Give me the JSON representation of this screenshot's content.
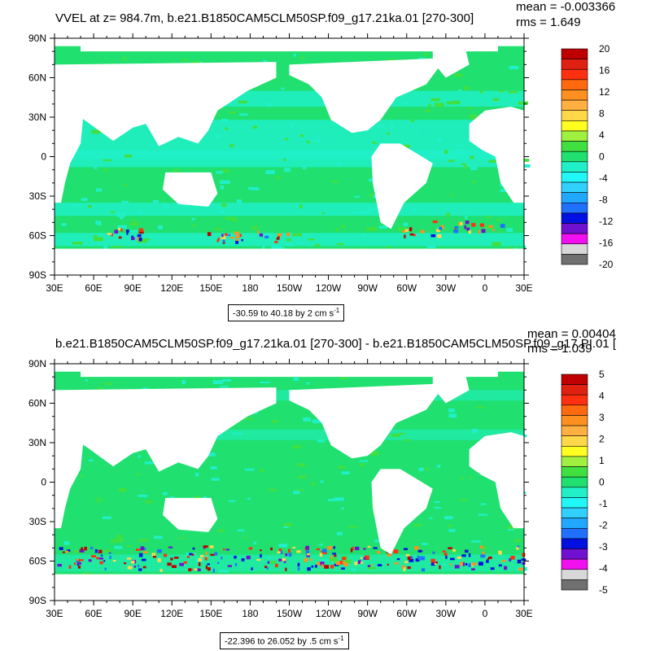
{
  "panels": [
    {
      "title": "VVEL at z= 984.7m, b.e21.B1850CAM5CLM50SP.f09_g17.21ka.01 [270-300]",
      "mean": "mean = -0.003366",
      "rms": "rms = 1.649",
      "caption": "-30.59 to 40.18 by 2 cm s",
      "caption_sup": "-1",
      "colorbar_labels": [
        "20",
        "16",
        "12",
        "8",
        "4",
        "0",
        "-4",
        "-8",
        "-12",
        "-16",
        "-20"
      ]
    },
    {
      "title": "b.e21.B1850CAM5CLM50SP.f09_g17.21ka.01 [270-300] - b.e21.B1850CAM5CLM50SP.f09_g17.PI.01 [",
      "mean": "mean = 0.00404",
      "rms": "rms = 1.039",
      "caption": "-22.396 to 26.052 by .5 cm s",
      "caption_sup": "-1",
      "colorbar_labels": [
        "5",
        "4",
        "3",
        "2",
        "1",
        "0",
        "-1",
        "-2",
        "-3",
        "-4",
        "-5"
      ]
    }
  ],
  "lat_labels": [
    "90N",
    "60N",
    "30N",
    "0",
    "30S",
    "60S",
    "90S"
  ],
  "lon_labels": [
    "30E",
    "60E",
    "90E",
    "120E",
    "150E",
    "180",
    "150W",
    "120W",
    "90W",
    "60W",
    "30W",
    "0",
    "30E"
  ],
  "colorbar_colors": [
    "#c00000",
    "#e02010",
    "#ff3010",
    "#ff6a10",
    "#ff9020",
    "#ffb040",
    "#ffd84a",
    "#ffff20",
    "#a0f040",
    "#40e040",
    "#20e070",
    "#20f0c8",
    "#20f8f8",
    "#30d0ff",
    "#20a8ff",
    "#2070ff",
    "#0010e0",
    "#7010d0",
    "#f010f0",
    "#d8d8d8",
    "#707070"
  ],
  "colors": {
    "ocean_fill": "#20e070",
    "cyan_band": "#20f0c8",
    "land": "#ffffff"
  }
}
